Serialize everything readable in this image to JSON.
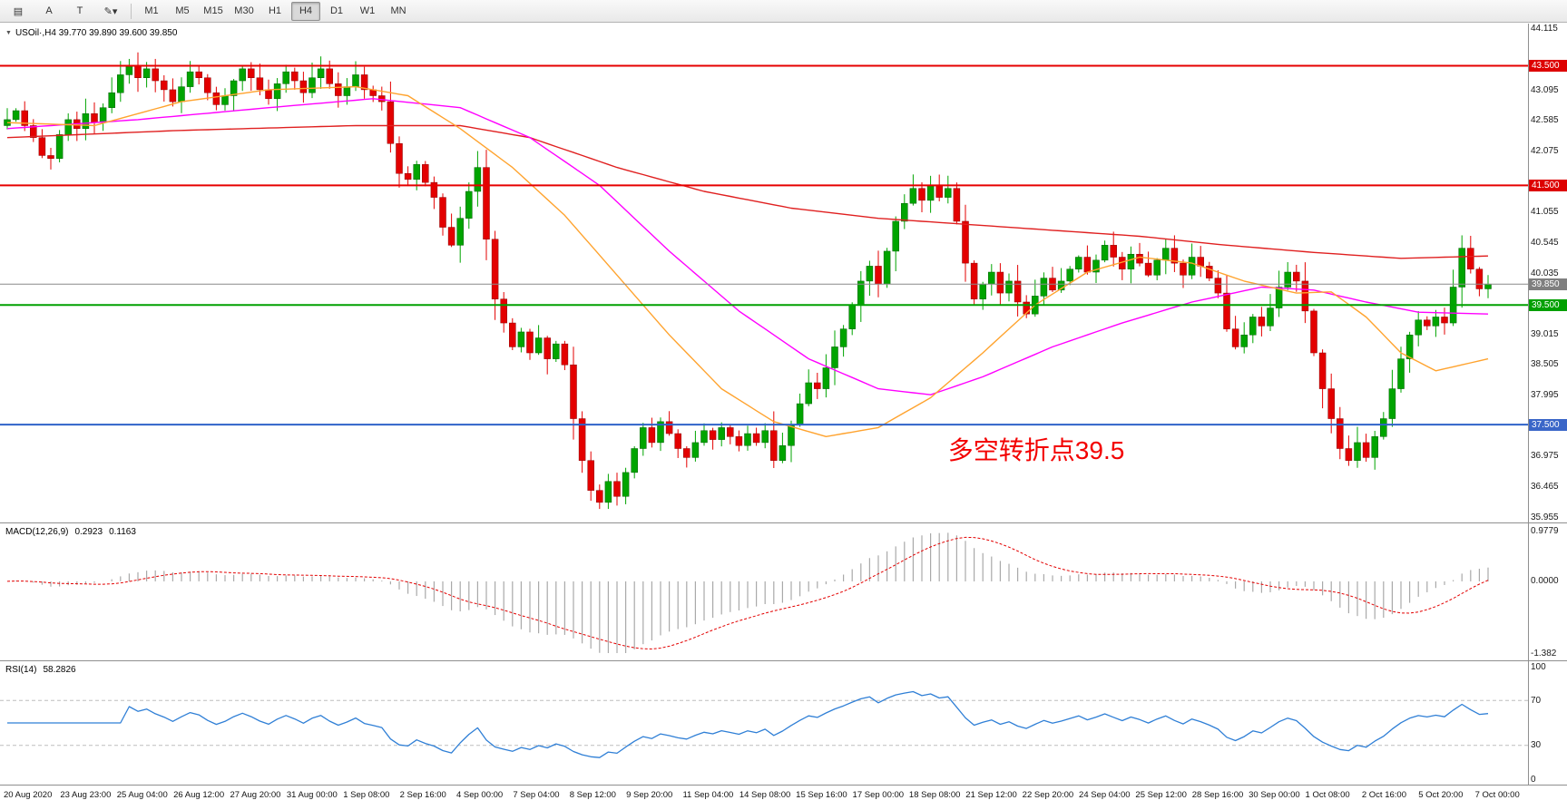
{
  "toolbar": {
    "icon_buttons": [
      {
        "name": "chart-list-icon",
        "glyph": "▤"
      },
      {
        "name": "annotation-a-button",
        "glyph": "A"
      },
      {
        "name": "annotation-t-button",
        "glyph": "T"
      },
      {
        "name": "draw-tools-dropdown",
        "glyph": "✎▾"
      }
    ],
    "timeframes": [
      "M1",
      "M5",
      "M15",
      "M30",
      "H1",
      "H4",
      "D1",
      "W1",
      "MN"
    ],
    "active_timeframe": "H4"
  },
  "symbol_header": {
    "marker": "▼",
    "text": "USOil·,H4 39.770 39.890 39.600 39.850"
  },
  "annotation": {
    "text": "多空转折点39.5",
    "color": "#f30000",
    "price": 37.15,
    "bar_index": 108
  },
  "colors": {
    "up": "#00a400",
    "up_border": "#005f00",
    "down": "#e30000",
    "down_border": "#8c0000",
    "ma_slow": "#e02020",
    "ma_medium": "#ff00ff",
    "ma_fast": "#ffa32e",
    "macd_bar": "#a9a9a9",
    "macd_signal": "#e30000",
    "rsi_line": "#2f7fd6",
    "rsi_guide": "#bdbdbd",
    "current_price": "#8a8a8a",
    "badge_red": "#dd0000",
    "badge_green": "#00a000",
    "badge_blue": "#3a66c8",
    "badge_gray": "#7f7f7f"
  },
  "chart_data": {
    "type": "candlestick",
    "symbol": "USOil",
    "timeframe": "H4",
    "ohlc_display": {
      "open": "39.770",
      "high": "39.890",
      "low": "39.600",
      "close": "39.850"
    },
    "price_axis": {
      "min": 35.864,
      "max": 44.206,
      "ticks": [
        "44.115",
        "43.095",
        "42.585",
        "42.075",
        "41.055",
        "40.545",
        "40.035",
        "39.015",
        "38.505",
        "37.995",
        "36.975",
        "36.465",
        "35.955"
      ],
      "badges": [
        {
          "label": "43.500",
          "price": 43.5,
          "color": "#dd0000",
          "name": "resistance-43.5-badge"
        },
        {
          "label": "41.500",
          "price": 41.5,
          "color": "#dd0000",
          "name": "resistance-41.5-badge"
        },
        {
          "label": "39.850",
          "price": 39.85,
          "color": "#7f7f7f",
          "name": "current-price-badge"
        },
        {
          "label": "39.500",
          "price": 39.5,
          "color": "#00a000",
          "name": "pivot-39.5-badge"
        },
        {
          "label": "37.500",
          "price": 37.5,
          "color": "#3a66c8",
          "name": "support-37.5-badge"
        }
      ]
    },
    "levels": [
      {
        "price": 43.5,
        "color": "#e60000",
        "width": 2,
        "name": "resistance-line-43.5"
      },
      {
        "price": 41.5,
        "color": "#e60000",
        "width": 2,
        "name": "resistance-line-41.5"
      },
      {
        "price": 39.5,
        "color": "#00a000",
        "width": 2,
        "name": "pivot-line-39.5"
      },
      {
        "price": 37.5,
        "color": "#2e62c9",
        "width": 2,
        "name": "support-line-37.5"
      },
      {
        "price": 39.85,
        "color": "#8a8a8a",
        "width": 1,
        "name": "current-price-line"
      }
    ],
    "first_open": 42.5,
    "closes": [
      42.6,
      42.75,
      42.5,
      42.3,
      42.0,
      41.95,
      42.35,
      42.6,
      42.45,
      42.7,
      42.55,
      42.8,
      43.05,
      43.35,
      43.5,
      43.3,
      43.45,
      43.25,
      43.1,
      42.9,
      43.15,
      43.4,
      43.3,
      43.05,
      42.85,
      43.0,
      43.25,
      43.45,
      43.3,
      43.1,
      42.95,
      43.2,
      43.4,
      43.25,
      43.05,
      43.3,
      43.45,
      43.2,
      43.0,
      43.15,
      43.35,
      43.1,
      43.0,
      42.9,
      42.2,
      41.7,
      41.6,
      41.85,
      41.55,
      41.3,
      40.8,
      40.5,
      40.95,
      41.4,
      41.8,
      40.6,
      39.6,
      39.2,
      38.8,
      39.05,
      38.7,
      38.95,
      38.6,
      38.85,
      38.5,
      37.6,
      36.9,
      36.4,
      36.2,
      36.55,
      36.3,
      36.7,
      37.1,
      37.45,
      37.2,
      37.55,
      37.35,
      37.1,
      36.95,
      37.2,
      37.4,
      37.25,
      37.45,
      37.3,
      37.15,
      37.35,
      37.2,
      37.4,
      36.9,
      37.15,
      37.5,
      37.85,
      38.2,
      38.1,
      38.45,
      38.8,
      39.1,
      39.5,
      39.9,
      40.15,
      39.85,
      40.4,
      40.9,
      41.2,
      41.45,
      41.25,
      41.5,
      41.3,
      41.45,
      40.9,
      40.2,
      39.6,
      39.85,
      40.05,
      39.7,
      39.9,
      39.55,
      39.35,
      39.65,
      39.95,
      39.75,
      39.9,
      40.1,
      40.3,
      40.05,
      40.25,
      40.5,
      40.3,
      40.1,
      40.35,
      40.2,
      40.0,
      40.25,
      40.45,
      40.2,
      40.0,
      40.3,
      40.15,
      39.95,
      39.7,
      39.1,
      38.8,
      39.0,
      39.3,
      39.15,
      39.45,
      39.8,
      40.05,
      39.9,
      39.4,
      38.7,
      38.1,
      37.6,
      37.1,
      36.9,
      37.2,
      36.95,
      37.3,
      37.6,
      38.1,
      38.6,
      39.0,
      39.25,
      39.15,
      39.3,
      39.2,
      39.8,
      40.45,
      40.1,
      39.77,
      39.85
    ],
    "moving_averages": [
      {
        "name": "slow-ma-line",
        "color": "#e02020",
        "points": [
          [
            0,
            42.3
          ],
          [
            20,
            42.42
          ],
          [
            40,
            42.5
          ],
          [
            52,
            42.5
          ],
          [
            60,
            42.3
          ],
          [
            70,
            41.8
          ],
          [
            80,
            41.4
          ],
          [
            90,
            41.12
          ],
          [
            100,
            40.95
          ],
          [
            110,
            40.85
          ],
          [
            120,
            40.75
          ],
          [
            130,
            40.65
          ],
          [
            140,
            40.5
          ],
          [
            150,
            40.38
          ],
          [
            160,
            40.28
          ],
          [
            170,
            40.32
          ]
        ]
      },
      {
        "name": "medium-ma-line",
        "color": "#ff00ff",
        "points": [
          [
            0,
            42.45
          ],
          [
            15,
            42.6
          ],
          [
            30,
            42.8
          ],
          [
            42,
            42.95
          ],
          [
            52,
            42.8
          ],
          [
            60,
            42.3
          ],
          [
            68,
            41.5
          ],
          [
            76,
            40.4
          ],
          [
            84,
            39.4
          ],
          [
            92,
            38.6
          ],
          [
            100,
            38.1
          ],
          [
            106,
            38.0
          ],
          [
            112,
            38.3
          ],
          [
            120,
            38.8
          ],
          [
            128,
            39.2
          ],
          [
            136,
            39.55
          ],
          [
            144,
            39.8
          ],
          [
            150,
            39.75
          ],
          [
            156,
            39.55
          ],
          [
            162,
            39.38
          ],
          [
            170,
            39.35
          ]
        ]
      },
      {
        "name": "fast-ma-line",
        "color": "#ffa32e",
        "points": [
          [
            0,
            42.55
          ],
          [
            10,
            42.5
          ],
          [
            20,
            42.9
          ],
          [
            30,
            43.1
          ],
          [
            40,
            43.15
          ],
          [
            46,
            43.0
          ],
          [
            52,
            42.45
          ],
          [
            58,
            41.8
          ],
          [
            64,
            41.0
          ],
          [
            70,
            40.0
          ],
          [
            76,
            39.0
          ],
          [
            82,
            38.1
          ],
          [
            88,
            37.55
          ],
          [
            94,
            37.3
          ],
          [
            100,
            37.45
          ],
          [
            106,
            37.95
          ],
          [
            112,
            38.7
          ],
          [
            118,
            39.5
          ],
          [
            124,
            40.05
          ],
          [
            130,
            40.3
          ],
          [
            136,
            40.2
          ],
          [
            142,
            39.9
          ],
          [
            148,
            39.7
          ],
          [
            152,
            39.72
          ],
          [
            156,
            39.3
          ],
          [
            160,
            38.7
          ],
          [
            164,
            38.4
          ],
          [
            170,
            38.6
          ]
        ]
      }
    ],
    "macd": {
      "label": "MACD(12,26,9)",
      "main_value": "0.2923",
      "signal_value": "0.1163",
      "fast": 12,
      "slow": 26,
      "signal_period": 9,
      "axis": [
        {
          "v": 0.9779,
          "label": "0.9779"
        },
        {
          "v": 0,
          "label": "0.0000"
        },
        {
          "v": -1.382,
          "label": "-1.382"
        }
      ]
    },
    "rsi": {
      "label": "RSI(14)",
      "value": "58.2826",
      "period": 14,
      "axis": [
        {
          "v": 100,
          "label": "100"
        },
        {
          "v": 70,
          "label": "70"
        },
        {
          "v": 30,
          "label": "30"
        },
        {
          "v": 0,
          "label": "0"
        }
      ],
      "guides": [
        70,
        30
      ]
    },
    "time_axis": [
      "20 Aug 2020",
      "23 Aug 23:00",
      "25 Aug 04:00",
      "26 Aug 12:00",
      "27 Aug 20:00",
      "31 Aug 00:00",
      "1 Sep 08:00",
      "2 Sep 16:00",
      "4 Sep 00:00",
      "7 Sep 04:00",
      "8 Sep 12:00",
      "9 Sep 20:00",
      "11 Sep 04:00",
      "14 Sep 08:00",
      "15 Sep 16:00",
      "17 Sep 00:00",
      "18 Sep 08:00",
      "21 Sep 12:00",
      "22 Sep 20:00",
      "24 Sep 04:00",
      "25 Sep 12:00",
      "28 Sep 16:00",
      "30 Sep 00:00",
      "1 Oct 08:00",
      "2 Oct 16:00",
      "5 Oct 20:00",
      "7 Oct 00:00"
    ]
  }
}
